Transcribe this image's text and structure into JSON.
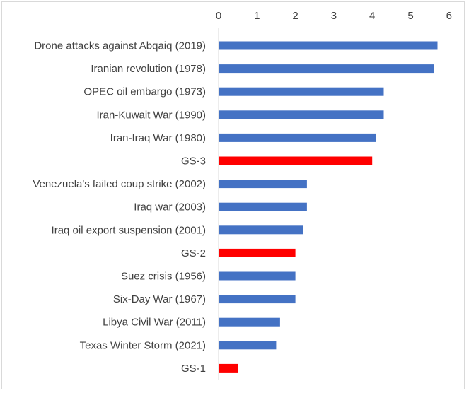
{
  "chart_data": {
    "type": "bar",
    "orientation": "horizontal",
    "title": "",
    "xlabel": "",
    "ylabel": "",
    "xlim": [
      0,
      6
    ],
    "x_ticks": [
      "0",
      "1",
      "2",
      "3",
      "4",
      "5",
      "6"
    ],
    "x_axis_position": "top",
    "grid": false,
    "legend": "none",
    "categories": [
      "Drone attacks against Abqaiq (2019)",
      "Iranian revolution (1978)",
      "OPEC oil embargo (1973)",
      "Iran-Kuwait War (1990)",
      "Iran-Iraq War (1980)",
      "GS-3",
      "Venezuela's failed coup strike (2002)",
      "Iraq war  (2003)",
      "Iraq oil export suspension (2001)",
      "GS-2",
      "Suez crisis (1956)",
      "Six-Day War (1967)",
      "Libya Civil War (2011)",
      "Texas Winter Storm (2021)",
      "GS-1"
    ],
    "values": [
      5.7,
      5.6,
      4.3,
      4.3,
      4.1,
      4.0,
      2.3,
      2.3,
      2.2,
      2.0,
      2.0,
      2.0,
      1.6,
      1.5,
      0.5
    ],
    "colors": {
      "historical": "#4472c4",
      "scenario": "#ff0000",
      "axis": "#d9d9d9",
      "text": "#404040"
    },
    "highlighted_categories": [
      "GS-3",
      "GS-2",
      "GS-1"
    ]
  }
}
